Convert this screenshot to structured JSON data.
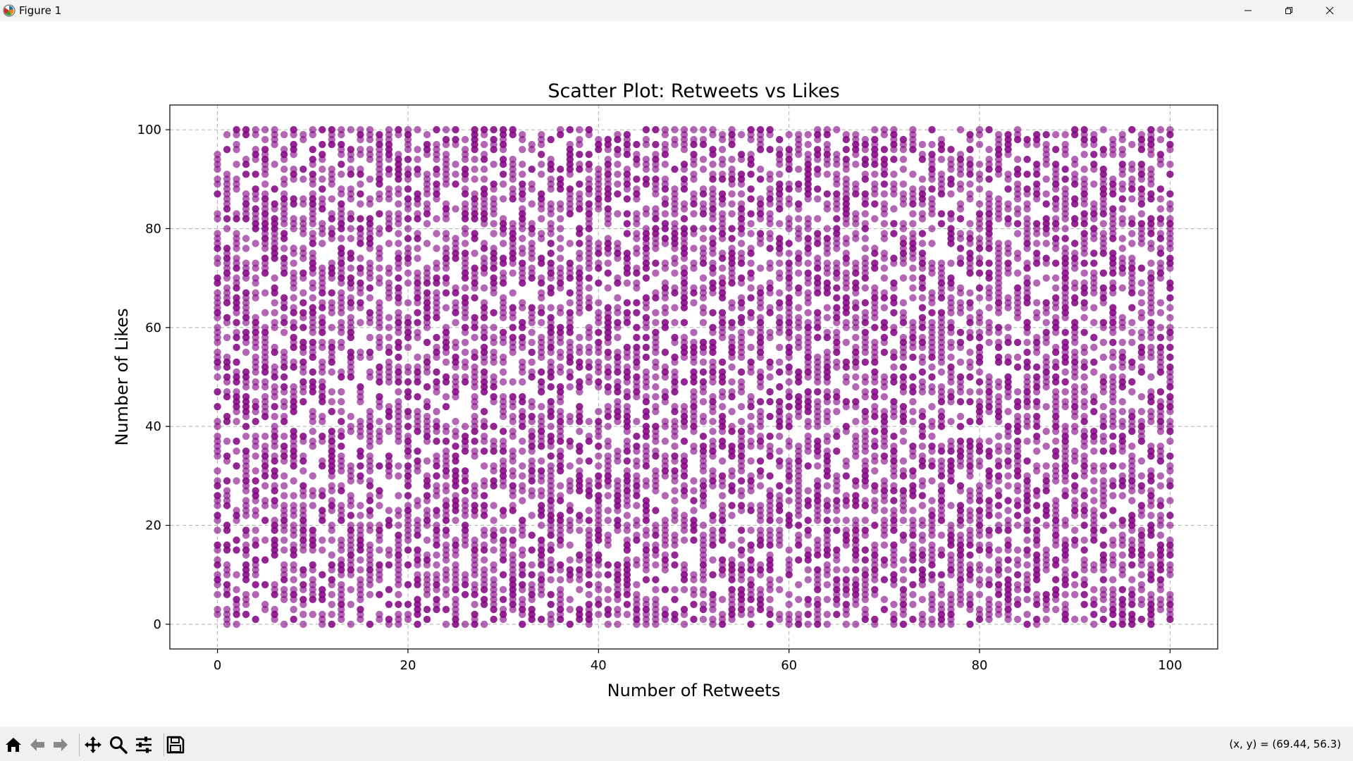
{
  "window": {
    "title": "Figure 1"
  },
  "toolbar": {
    "coord_readout": "(x, y) = (69.44, 56.3)",
    "icons": [
      "home-icon",
      "back-arrow-icon",
      "forward-arrow-icon",
      "pan-icon",
      "zoom-icon",
      "configure-subplots-icon",
      "save-icon"
    ]
  },
  "chart_data": {
    "type": "scatter",
    "title": "Scatter Plot: Retweets vs Likes",
    "xlabel": "Number of Retweets",
    "ylabel": "Number of Likes",
    "xlim": [
      -5,
      105
    ],
    "ylim": [
      -5,
      105
    ],
    "xticks": [
      0,
      20,
      40,
      60,
      80,
      100
    ],
    "yticks": [
      0,
      20,
      40,
      60,
      80,
      100
    ],
    "grid": true,
    "grid_style": "dashed",
    "marker_color": "#800080",
    "marker_alpha": 0.6,
    "point_description": "Integer-valued points densely covering x in 0..100 and y in 0..100 (roughly 60% of integer grid cells filled)",
    "x_range": [
      0,
      100
    ],
    "y_range": [
      0,
      100
    ],
    "fill_fraction": 0.6
  }
}
